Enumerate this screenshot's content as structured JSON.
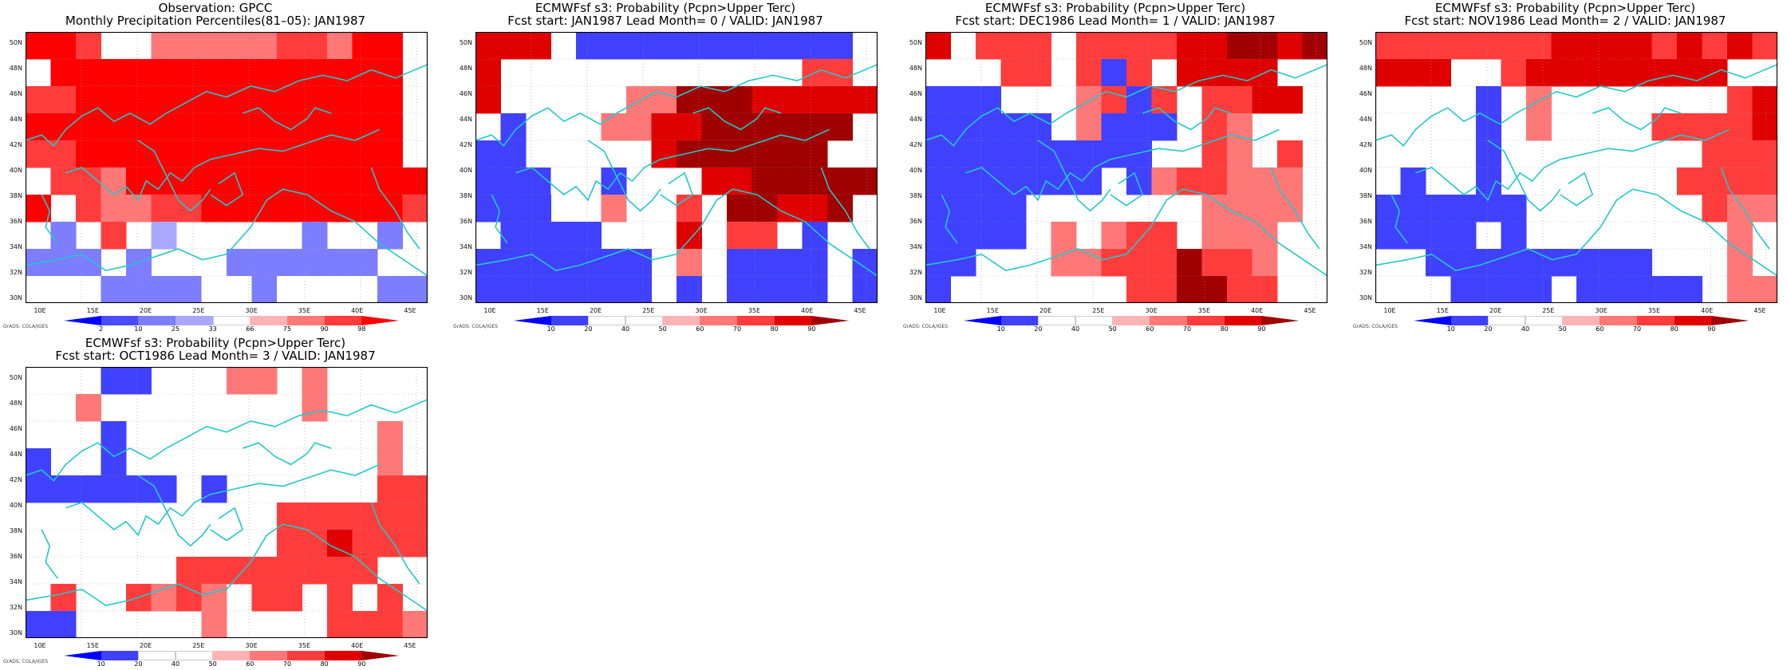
{
  "panels": [
    {
      "title1": "Observation: GPCC",
      "title2": "Monthly Precipitation Percentiles(81–05): JAN1987",
      "legend": {
        "type": "percentile",
        "labels": [
          "2",
          "10",
          "25",
          "33",
          "66",
          "75",
          "90",
          "98"
        ],
        "colors": [
          "#0000ff",
          "#4b4bff",
          "#7d7dff",
          "#a8a8ff",
          "#ffffff",
          "#ffb4b4",
          "#ff7878",
          "#ff3c3c",
          "#ff0000"
        ]
      },
      "grid": [
        "887..6666677688",
        ".88898888899988",
        "779999888889999",
        "889999888899999",
        "779988888888999",
        ".776889999999888",
        "8.76677889999987",
        ".2.7.3.....2..2",
        "222.2...222222",
        "4442222442444422"
      ]
    },
    {
      "title1": "ECMWFsf s3: Probability (Pcpn>Upper Terc)",
      "title2": "Fcst start: JAN1987   Lead Month= 0 / VALID: JAN1987",
      "legend": {
        "type": "probability",
        "labels": [
          "10",
          "20",
          "40",
          "50",
          "60",
          "70",
          "80",
          "90"
        ],
        "colors": [
          "#0000ff",
          "#4040ff",
          "#ffffff",
          "#ffffff",
          "#ffb4b4",
          "#ff7878",
          "#ff3c3c",
          "#e00000",
          "#a00000"
        ]
      },
      "grid": [
        "777.11111111111",
        "7............66",
        "7.....5588877777",
        ".1...5577899888",
        "11.2...7899999",
        "1112.1...7799998",
        "111..5..6.88778",
        ".1111...7.66.1.",
        "1111111.5.1111.1",
        "1111111.1.1111.1"
      ]
    },
    {
      "title1": "ECMWFsf s3: Probability (Pcpn>Upper Terc)",
      "title2": "Fcst start: DEC1986   Lead Month= 1 / VALID: JAN1987",
      "legend": {
        "type": "probability",
        "labels": [
          "10",
          "20",
          "40",
          "50",
          "60",
          "70",
          "80",
          "90"
        ],
        "colors": [
          "#0000ff",
          "#4040ff",
          "#ffffff",
          "#ffffff",
          "#ffb4b4",
          "#ff7878",
          "#ff3c3c",
          "#e00000",
          "#a00000"
        ]
      },
      "grid": [
        "7.666.6666778878",
        "...66.616.7777",
        "111...5616.6677",
        "11111.5111.65..",
        "111111111..65.6",
        "1111111.1566555",
        "1111.......5555",
        "1111.5.566.555",
        "11...556668665.",
        "1.......668866."
      ]
    },
    {
      "title1": "ECMWFsf s3: Probability (Pcpn>Upper Terc)",
      "title2": "Fcst start: NOV1986   Lead Month= 2 / VALID: JAN1987",
      "legend": {
        "type": "probability",
        "labels": [
          "10",
          "20",
          "40",
          "50",
          "60",
          "70",
          "80",
          "90"
        ],
        "colors": [
          "#0000ff",
          "#4040ff",
          "#ffffff",
          "#ffffff",
          "#ffb4b4",
          "#ff7878",
          "#ff3c3c",
          "#e00000",
          "#a00000"
        ]
      },
      "grid": [
        "6666666777767676",
        "777..677777777",
        "....1.5.......67",
        "....1.5....66667",
        "....1........666",
        ".1..1.......6666",
        "111111.......655",
        "1111.1........5",
        "..111111111...5",
        "...1111.11111.55"
      ]
    },
    {
      "title1": "ECMWFsf s3: Probability (Pcpn>Upper Terc)",
      "title2": "Fcst start: OCT1986   Lead Month= 3 / VALID: JAN1987",
      "legend": {
        "type": "probability",
        "labels": [
          "10",
          "20",
          "40",
          "50",
          "60",
          "70",
          "80",
          "90"
        ],
        "colors": [
          "#0000ff",
          "#4040ff",
          "#ffffff",
          "#ffffff",
          "#ffb4b4",
          "#ff7878",
          "#ff3c3c",
          "#e00000",
          "#a00000"
        ]
      },
      "grid": [
        "...11...55.5....",
        "..5........5....",
        "...1..........5.",
        "1..1..........5.",
        "111111.1......66",
        "..........666666",
        "..........667666",
        "......66666666",
        ".6..6565.66.6.6",
        "11.....5....6665"
      ]
    }
  ],
  "axes": {
    "ylabels": [
      "50N",
      "48N",
      "46N",
      "44N",
      "42N",
      "40N",
      "38N",
      "36N",
      "34N",
      "32N",
      "30N"
    ],
    "xlabels": [
      "10E",
      "15E",
      "20E",
      "25E",
      "30E",
      "35E",
      "40E",
      "45E"
    ]
  },
  "credit": "GrADS: COLA/IGES"
}
